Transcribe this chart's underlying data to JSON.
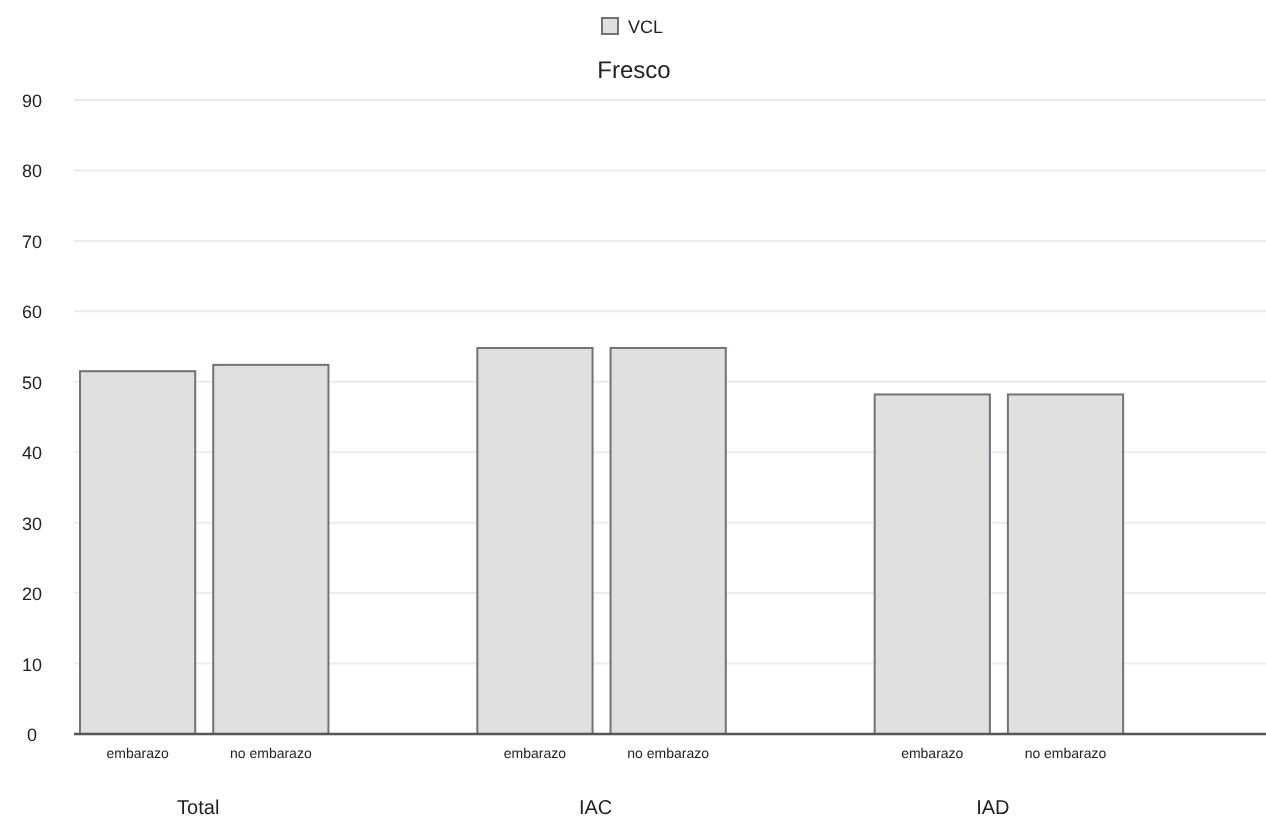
{
  "chart_data": {
    "type": "bar",
    "title": "Fresco",
    "categories": [
      "embarazo",
      "no embarazo",
      "embarazo",
      "no embarazo",
      "embarazo",
      "no embarazo"
    ],
    "series": [
      {
        "name": "VCL",
        "color": "#e0e0e0",
        "values": [
          51.5,
          52.4,
          54.8,
          54.8,
          48.2,
          48.2
        ]
      }
    ],
    "annotations": [
      "Total",
      "IAC",
      "IAD"
    ],
    "ylim": [
      0,
      90
    ],
    "yticks": [
      0,
      10,
      20,
      30,
      40,
      50,
      60,
      70,
      80,
      90
    ],
    "grid": "y",
    "legend": "top"
  }
}
